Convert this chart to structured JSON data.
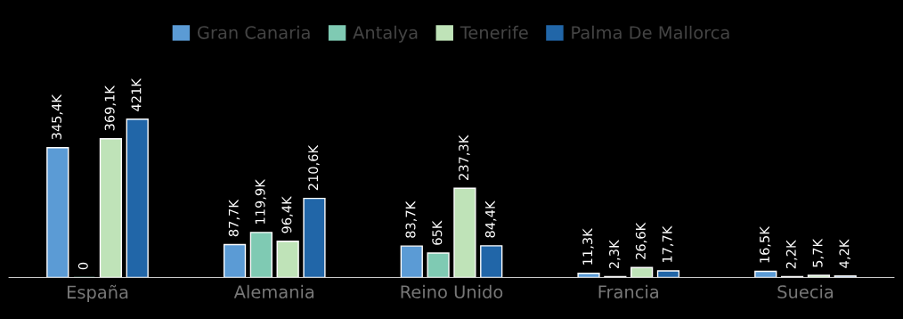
{
  "chart_data": {
    "type": "bar",
    "categories": [
      "España",
      "Alemania",
      "Reino Unido",
      "Francia",
      "Suecia"
    ],
    "series": [
      {
        "name": "Gran Canaria",
        "color": "#5b9bd5",
        "values": [
          345400,
          87700,
          83700,
          11300,
          16500
        ],
        "value_labels": [
          "345,4K",
          "87,7K",
          "83,7K",
          "11,3K",
          "16,5K"
        ]
      },
      {
        "name": "Antalya",
        "color": "#7fcab3",
        "values": [
          0,
          119900,
          65000,
          2300,
          2200
        ],
        "value_labels": [
          "0",
          "119,9K",
          "65K",
          "2,3K",
          "2,2K"
        ]
      },
      {
        "name": "Tenerife",
        "color": "#bfe3b8",
        "values": [
          369100,
          96400,
          237300,
          26600,
          5700
        ],
        "value_labels": [
          "369,1K",
          "96,4K",
          "237,3K",
          "26,6K",
          "5,7K"
        ]
      },
      {
        "name": "Palma De Mallorca",
        "color": "#2166a8",
        "values": [
          421000,
          210600,
          84400,
          17700,
          4200
        ],
        "value_labels": [
          "421K",
          "210,6K",
          "84,4K",
          "17,7K",
          "4,2K"
        ]
      }
    ],
    "legend": "top",
    "grid": false
  }
}
